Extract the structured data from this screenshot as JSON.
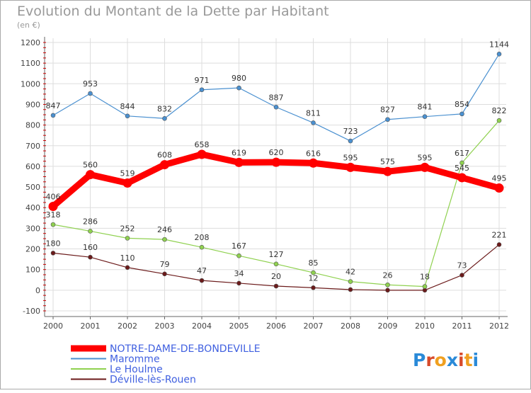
{
  "chart_data": {
    "type": "line",
    "title": "Evolution du Montant de la Dette par Habitant",
    "subtitle": "(en €)",
    "xlabel": "",
    "ylabel": "",
    "ylim": [
      -100,
      1200
    ],
    "yticks": [
      -100,
      0,
      100,
      200,
      300,
      400,
      500,
      600,
      700,
      800,
      900,
      1000,
      1100,
      1200
    ],
    "categories": [
      "2000",
      "2001",
      "2002",
      "2003",
      "2004",
      "2005",
      "2006",
      "2007",
      "2008",
      "2009",
      "2010",
      "2011",
      "2012"
    ],
    "grid": true,
    "legend_position": "bottom-left",
    "series": [
      {
        "name": "NOTRE-DAME-DE-BONDEVILLE",
        "color": "#ff0000",
        "emphasis": true,
        "values": [
          406,
          560,
          519,
          608,
          658,
          619,
          620,
          616,
          595,
          575,
          595,
          545,
          495
        ]
      },
      {
        "name": "Maromme",
        "color": "#4a90d0",
        "emphasis": false,
        "values": [
          847,
          953,
          844,
          832,
          971,
          980,
          887,
          811,
          723,
          827,
          841,
          854,
          1144
        ]
      },
      {
        "name": "Le Houlme",
        "color": "#8fd14f",
        "emphasis": false,
        "values": [
          318,
          286,
          252,
          246,
          208,
          167,
          127,
          85,
          42,
          26,
          18,
          617,
          822
        ]
      },
      {
        "name": "Déville-lès-Rouen",
        "color": "#6b1a1a",
        "emphasis": false,
        "values": [
          180,
          160,
          110,
          79,
          47,
          34,
          20,
          12,
          3,
          0,
          0,
          73,
          221
        ]
      }
    ],
    "point_labels": [
      [
        "406",
        "560",
        "519",
        "608",
        "658",
        "619",
        "620",
        "616",
        "595",
        "575",
        "595",
        "545",
        "495"
      ],
      [
        "847",
        "953",
        "844",
        "832",
        "971",
        "980",
        "887",
        "811",
        "723",
        "827",
        "841",
        "854",
        "1144"
      ],
      [
        "318",
        "286",
        "252",
        "246",
        "208",
        "167",
        "127",
        "85",
        "42",
        "26",
        "18",
        "617",
        "822"
      ],
      [
        "180",
        "160",
        "110",
        "79",
        "47",
        "34",
        "20",
        "12",
        "",
        "",
        "",
        "73",
        "221"
      ]
    ]
  },
  "branding": {
    "logo_text": "Proxiti",
    "logo_colors": [
      "#2a8ad8",
      "#d84a2a",
      "#f0a020",
      "#2a8ad8",
      "#d84a2a",
      "#f0a020",
      "#2a8ad8"
    ]
  },
  "colors": {
    "axis": "#666666",
    "grid": "#dddddd",
    "title": "#999999",
    "border": "#aaaaaa",
    "tick_mark": "#cc0000",
    "legend_text": "#4060e0"
  }
}
